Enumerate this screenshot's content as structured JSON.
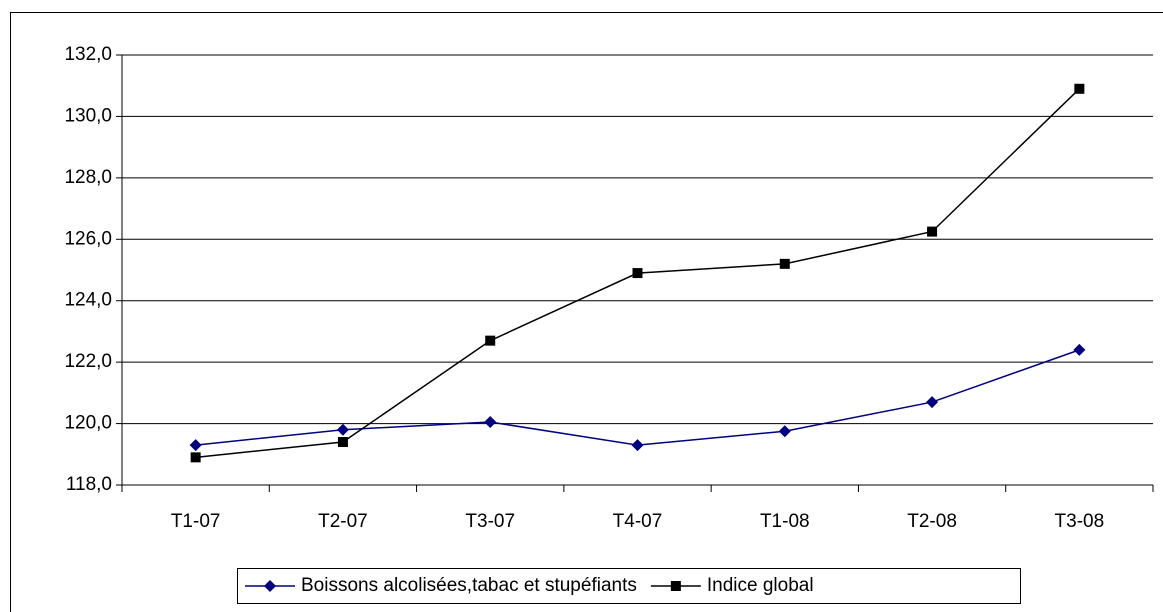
{
  "chart_data": {
    "type": "line",
    "categories": [
      "T1-07",
      "T2-07",
      "T3-07",
      "T4-07",
      "T1-08",
      "T2-08",
      "T3-08"
    ],
    "series": [
      {
        "name": "Boissons alcolisées,tabac et stupéfiants",
        "color": "#000080",
        "marker": "diamond",
        "values": [
          119.3,
          119.8,
          120.05,
          119.3,
          119.75,
          120.7,
          122.4
        ]
      },
      {
        "name": "Indice global",
        "color": "#000000",
        "marker": "square",
        "values": [
          118.9,
          119.4,
          122.7,
          124.9,
          125.2,
          126.25,
          130.9
        ]
      }
    ],
    "ylim": [
      118,
      132
    ],
    "yticks": [
      {
        "value": 118,
        "label": "118,0"
      },
      {
        "value": 120,
        "label": "120,0"
      },
      {
        "value": 122,
        "label": "122,0"
      },
      {
        "value": 124,
        "label": "124,0"
      },
      {
        "value": 126,
        "label": "126,0"
      },
      {
        "value": 128,
        "label": "128,0"
      },
      {
        "value": 130,
        "label": "130,0"
      },
      {
        "value": 132,
        "label": "132,0"
      }
    ],
    "grid": true,
    "legend": "bottom"
  }
}
